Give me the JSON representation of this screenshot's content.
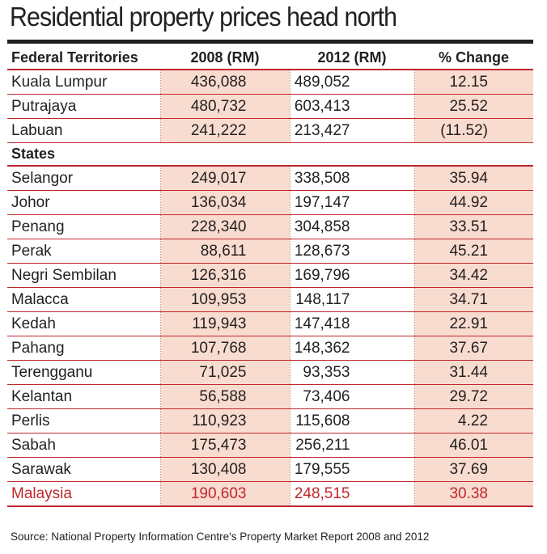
{
  "title": "Residential property prices head north",
  "chart_data": {
    "type": "table",
    "title": "Residential property prices head north",
    "columns": [
      "Federal Territories",
      "2008 (RM)",
      "2012 (RM)",
      "% Change"
    ],
    "groups": [
      {
        "name": "Federal Territories",
        "rows": [
          {
            "region": "Kuala Lumpur",
            "y2008": "436,088",
            "y2012": "489,052",
            "change": "12.15"
          },
          {
            "region": "Putrajaya",
            "y2008": "480,732",
            "y2012": "603,413",
            "change": "25.52"
          },
          {
            "region": "Labuan",
            "y2008": "241,222",
            "y2012": "213,427",
            "change": "(11.52)"
          }
        ]
      },
      {
        "name": "States",
        "rows": [
          {
            "region": "Selangor",
            "y2008": "249,017",
            "y2012": "338,508",
            "change": "35.94"
          },
          {
            "region": "Johor",
            "y2008": "136,034",
            "y2012": "197,147",
            "change": "44.92"
          },
          {
            "region": "Penang",
            "y2008": "228,340",
            "y2012": "304,858",
            "change": "33.51"
          },
          {
            "region": "Perak",
            "y2008": "88,611",
            "y2012": "128,673",
            "change": "45.21"
          },
          {
            "region": "Negri Sembilan",
            "y2008": "126,316",
            "y2012": "169,796",
            "change": "34.42"
          },
          {
            "region": "Malacca",
            "y2008": "109,953",
            "y2012": "148,117",
            "change": "34.71"
          },
          {
            "region": "Kedah",
            "y2008": "119,943",
            "y2012": "147,418",
            "change": "22.91"
          },
          {
            "region": "Pahang",
            "y2008": "107,768",
            "y2012": "148,362",
            "change": "37.67"
          },
          {
            "region": "Terengganu",
            "y2008": "71,025",
            "y2012": "93,353",
            "change": "31.44"
          },
          {
            "region": "Kelantan",
            "y2008": "56,588",
            "y2012": "73,406",
            "change": "29.72"
          },
          {
            "region": "Perlis",
            "y2008": "110,923",
            "y2012": "115,608",
            "change": "4.22"
          },
          {
            "region": "Sabah",
            "y2008": "175,473",
            "y2012": "256,211",
            "change": "46.01"
          },
          {
            "region": "Sarawak",
            "y2008": "130,408",
            "y2012": "179,555",
            "change": "37.69"
          }
        ]
      }
    ],
    "total": {
      "region": "Malaysia",
      "y2008": "190,603",
      "y2012": "248,515",
      "change": "30.38"
    }
  },
  "source": "Source: National Property Information Centre's Property Market Report 2008 and 2012",
  "colors": {
    "accent_red": "#c0272d",
    "shade": "#f8dccf",
    "text": "#231f20"
  }
}
